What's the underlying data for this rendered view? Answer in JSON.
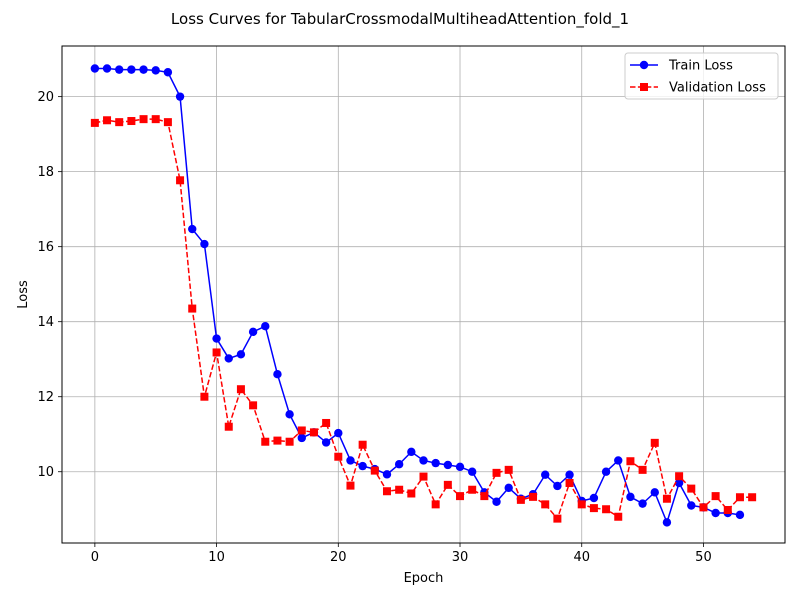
{
  "chart_data": {
    "type": "line",
    "title": "Loss Curves for TabularCrossmodalMultiheadAttention_fold_1",
    "xlabel": "Epoch",
    "ylabel": "Loss",
    "xlim": [
      -2.7,
      56.7
    ],
    "ylim": [
      8.1,
      21.35
    ],
    "xticks": [
      0,
      10,
      20,
      30,
      40,
      50
    ],
    "yticks": [
      10,
      12,
      14,
      16,
      18,
      20
    ],
    "grid": true,
    "legend_position": "top-right",
    "series": [
      {
        "name": "Train Loss",
        "color": "#0000ff",
        "marker": "circle",
        "linestyle": "solid",
        "x": [
          0,
          1,
          2,
          3,
          4,
          5,
          6,
          7,
          8,
          9,
          10,
          11,
          12,
          13,
          14,
          15,
          16,
          17,
          18,
          19,
          20,
          21,
          22,
          23,
          24,
          25,
          26,
          27,
          28,
          29,
          30,
          31,
          32,
          33,
          34,
          35,
          36,
          37,
          38,
          39,
          40,
          41,
          42,
          43,
          44,
          45,
          46,
          47,
          48,
          49,
          50,
          51,
          52,
          53
        ],
        "values": [
          20.75,
          20.75,
          20.72,
          20.72,
          20.72,
          20.7,
          20.65,
          20.0,
          16.47,
          16.07,
          13.55,
          13.02,
          13.13,
          13.73,
          13.88,
          12.6,
          11.53,
          10.9,
          11.05,
          10.78,
          11.03,
          10.3,
          10.15,
          10.07,
          9.93,
          10.2,
          10.53,
          10.3,
          10.23,
          10.18,
          10.13,
          10.0,
          9.45,
          9.2,
          9.57,
          9.28,
          9.4,
          9.92,
          9.62,
          9.92,
          9.22,
          9.3,
          10.0,
          10.3,
          9.33,
          9.15,
          9.45,
          8.65,
          9.7,
          9.1,
          9.05,
          8.9,
          8.9,
          8.85
        ]
      },
      {
        "name": "Validation Loss",
        "color": "#ff0000",
        "marker": "square",
        "linestyle": "dashed",
        "x": [
          0,
          1,
          2,
          3,
          4,
          5,
          6,
          7,
          8,
          9,
          10,
          11,
          12,
          13,
          14,
          15,
          16,
          17,
          18,
          19,
          20,
          21,
          22,
          23,
          24,
          25,
          26,
          27,
          28,
          29,
          30,
          31,
          32,
          33,
          34,
          35,
          36,
          37,
          38,
          39,
          40,
          41,
          42,
          43,
          44,
          45,
          46,
          47,
          48,
          49,
          50,
          51,
          52,
          53,
          54
        ],
        "values": [
          19.3,
          19.37,
          19.32,
          19.35,
          19.4,
          19.4,
          19.32,
          17.77,
          14.35,
          12.0,
          13.18,
          11.2,
          12.2,
          11.77,
          10.8,
          10.83,
          10.8,
          11.1,
          11.05,
          11.3,
          10.4,
          9.63,
          10.72,
          10.03,
          9.48,
          9.52,
          9.42,
          9.87,
          9.13,
          9.65,
          9.35,
          9.52,
          9.35,
          9.97,
          10.05,
          9.25,
          9.33,
          9.13,
          8.75,
          9.7,
          9.13,
          9.03,
          9.0,
          8.8,
          10.28,
          10.05,
          10.77,
          9.28,
          9.88,
          9.55,
          9.05,
          9.35,
          8.98,
          9.32,
          9.32
        ]
      }
    ]
  }
}
